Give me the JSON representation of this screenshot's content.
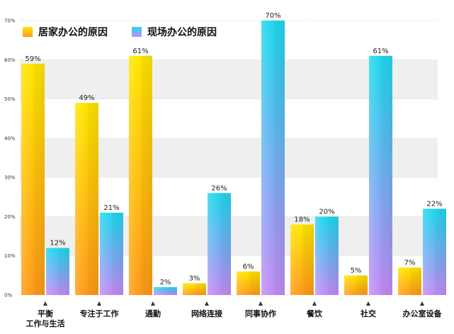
{
  "chart_data": {
    "type": "bar",
    "categories": [
      [
        "平衡",
        "工作与生活"
      ],
      [
        "专注于工作"
      ],
      [
        "通勤"
      ],
      [
        "网络连接"
      ],
      [
        "同事协作"
      ],
      [
        "餐饮"
      ],
      [
        "社交"
      ],
      [
        "办公室设备"
      ]
    ],
    "series": [
      {
        "name": "居家办公的原因",
        "values": [
          59,
          49,
          61,
          3,
          6,
          18,
          5,
          7
        ],
        "labels": [
          "59%",
          "49%",
          "61%",
          "3%",
          "6%",
          "18%",
          "5%",
          "7%"
        ],
        "color_top": "#ffe600",
        "color_bottom": "#ff9a1a"
      },
      {
        "name": "现场办公的原因",
        "values": [
          12,
          21,
          2,
          26,
          70,
          20,
          61,
          22
        ],
        "labels": [
          "12%",
          "21%",
          "2%",
          "26%",
          "70%",
          "20%",
          "61%",
          "22%"
        ],
        "color_top": "#1fd8ee",
        "color_bottom": "#c48cf5"
      }
    ],
    "ylim": [
      0,
      70
    ],
    "yticks": [
      0,
      10,
      20,
      30,
      40,
      50,
      60,
      70
    ],
    "ytick_labels": [
      "0%",
      "10%",
      "20%",
      "30%",
      "40%",
      "50%",
      "60%",
      "70%"
    ],
    "grid": true,
    "grid_style": "alternating-bands",
    "legend_position": "top-left",
    "category_marker": "▲"
  }
}
